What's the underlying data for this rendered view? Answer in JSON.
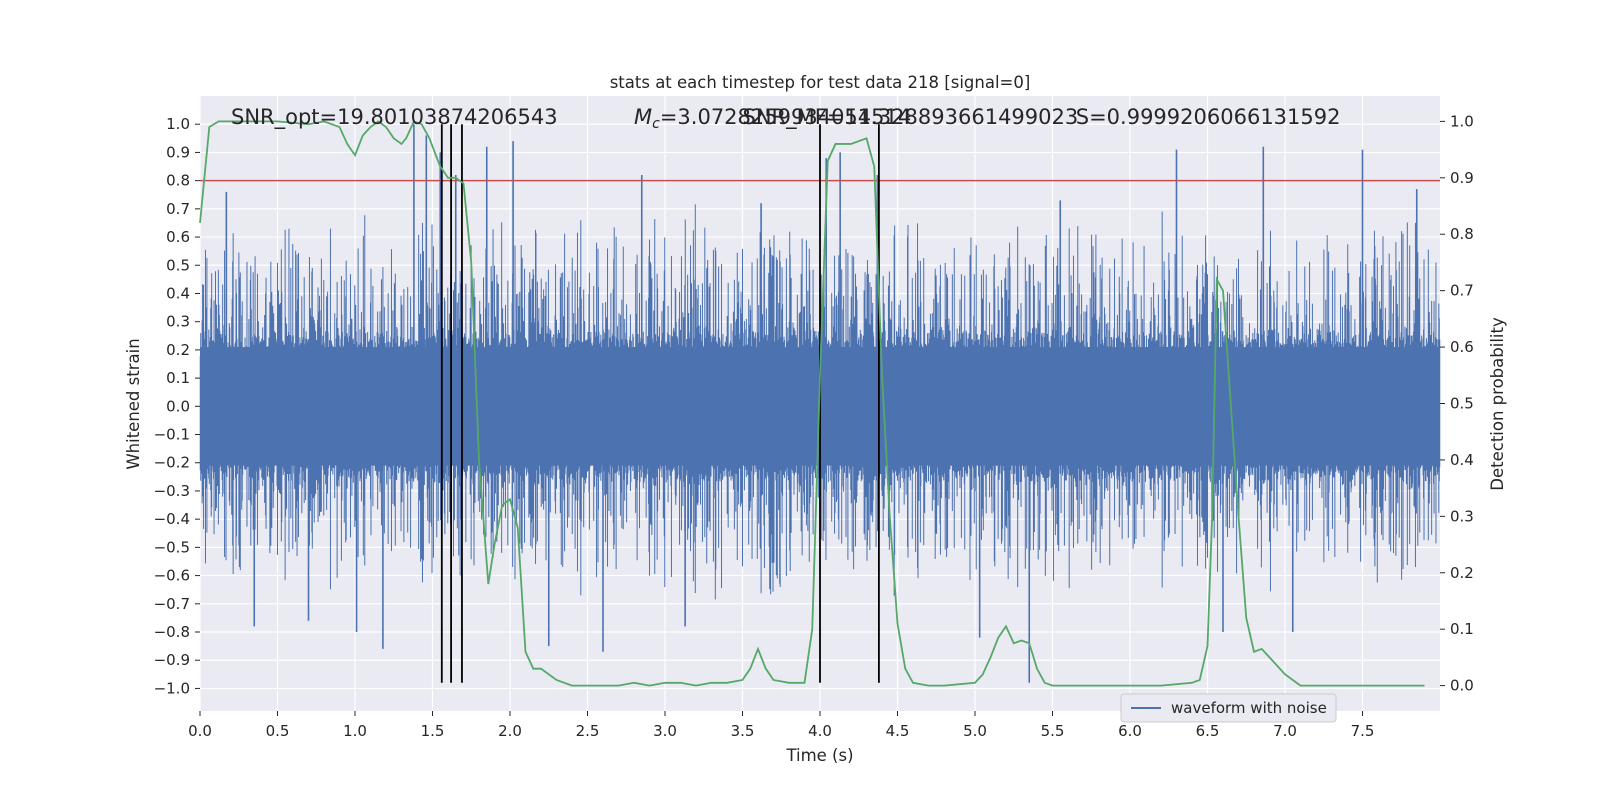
{
  "chart_data": {
    "type": "line",
    "title": "stats at each timestep for test data 218 [signal=0]",
    "xlabel": "Time (s)",
    "ylabel_left": "Whitened strain",
    "ylabel_right": "Detection probability",
    "xlim": [
      0.0,
      8.0
    ],
    "ylim_left": [
      -1.08,
      1.1
    ],
    "ylim_right": [
      -0.045,
      1.045
    ],
    "x_ticks": [
      "0.0",
      "0.5",
      "1.0",
      "1.5",
      "2.0",
      "2.5",
      "3.0",
      "3.5",
      "4.0",
      "4.5",
      "5.0",
      "5.5",
      "6.0",
      "6.5",
      "7.0",
      "7.5"
    ],
    "x_tick_values": [
      0.0,
      0.5,
      1.0,
      1.5,
      2.0,
      2.5,
      3.0,
      3.5,
      4.0,
      4.5,
      5.0,
      5.5,
      6.0,
      6.5,
      7.0,
      7.5
    ],
    "y_ticks_left": [
      "1.0",
      "0.9",
      "0.8",
      "0.7",
      "0.6",
      "0.5",
      "0.4",
      "0.3",
      "0.2",
      "0.1",
      "0.0",
      "−0.1",
      "−0.2",
      "−0.3",
      "−0.4",
      "−0.5",
      "−0.6",
      "−0.7",
      "−0.8",
      "−0.9",
      "−1.0"
    ],
    "y_tick_values_left": [
      1.0,
      0.9,
      0.8,
      0.7,
      0.6,
      0.5,
      0.4,
      0.3,
      0.2,
      0.1,
      0.0,
      -0.1,
      -0.2,
      -0.3,
      -0.4,
      -0.5,
      -0.6,
      -0.7,
      -0.8,
      -0.9,
      -1.0
    ],
    "y_ticks_right": [
      "1.0",
      "0.9",
      "0.8",
      "0.7",
      "0.6",
      "0.5",
      "0.4",
      "0.3",
      "0.2",
      "0.1",
      "0.0"
    ],
    "y_tick_values_right": [
      1.0,
      0.9,
      0.8,
      0.7,
      0.6,
      0.5,
      0.4,
      0.3,
      0.2,
      0.1,
      0.0
    ],
    "grid": true,
    "legend": {
      "entries": [
        "waveform with noise"
      ],
      "placement": "lower-right"
    },
    "annotations": [
      {
        "text": "SNR_opt=19.80103874206543",
        "x": 0.2
      },
      {
        "text": "=3.0728259934051514",
        "x": 2.8,
        "math_prefix": "M",
        "math_sub": "c"
      },
      {
        "text": "SNR_MF=14.328893661499023",
        "x": 3.5
      },
      {
        "text": "S=0.9999206066131592",
        "x": 5.65
      }
    ],
    "threshold": {
      "value": 0.8,
      "color": "#c44e52"
    },
    "vertical_lines": [
      1.56,
      1.62,
      1.69,
      4.0,
      4.38
    ],
    "vertical_line_range": [
      -0.98,
      1.0
    ],
    "waveform": {
      "name": "waveform with noise",
      "color": "#4c72b0",
      "core_envelope": 0.28,
      "max_envelope": 0.97,
      "spike_x": [
        0.17,
        0.35,
        0.7,
        1.01,
        1.18,
        1.38,
        1.46,
        1.55,
        1.65,
        1.85,
        2.02,
        2.25,
        2.6,
        2.85,
        3.13,
        3.62,
        4.04,
        4.13,
        4.37,
        5.03,
        5.35,
        5.55,
        6.3,
        6.6,
        6.86,
        7.05,
        7.5,
        7.85
      ],
      "spike_y": [
        0.76,
        -0.78,
        -0.76,
        -0.8,
        -0.86,
        1.0,
        0.96,
        0.9,
        0.82,
        0.92,
        0.94,
        -0.85,
        -0.87,
        0.82,
        -0.78,
        0.72,
        0.88,
        0.9,
        0.82,
        -0.82,
        -0.98,
        0.73,
        0.91,
        -0.8,
        0.92,
        -0.8,
        0.91,
        0.77
      ]
    },
    "detection_probability": {
      "name": "",
      "color": "#55a868",
      "x": [
        0.0,
        0.06,
        0.12,
        0.3,
        0.5,
        0.7,
        0.8,
        0.9,
        0.95,
        1.0,
        1.05,
        1.1,
        1.15,
        1.2,
        1.25,
        1.3,
        1.33,
        1.38,
        1.43,
        1.48,
        1.55,
        1.6,
        1.65,
        1.7,
        1.75,
        1.8,
        1.86,
        1.9,
        1.95,
        2.0,
        2.05,
        2.1,
        2.15,
        2.2,
        2.3,
        2.4,
        2.5,
        2.6,
        2.7,
        2.8,
        2.9,
        3.0,
        3.1,
        3.2,
        3.3,
        3.4,
        3.5,
        3.55,
        3.6,
        3.65,
        3.7,
        3.8,
        3.9,
        3.95,
        4.0,
        4.05,
        4.1,
        4.2,
        4.3,
        4.35,
        4.4,
        4.45,
        4.5,
        4.55,
        4.6,
        4.7,
        4.8,
        5.0,
        5.05,
        5.1,
        5.15,
        5.2,
        5.25,
        5.3,
        5.35,
        5.4,
        5.45,
        5.5,
        5.6,
        5.8,
        6.0,
        6.2,
        6.4,
        6.45,
        6.5,
        6.53,
        6.56,
        6.6,
        6.65,
        6.7,
        6.75,
        6.8,
        6.85,
        6.9,
        7.0,
        7.1,
        7.3,
        7.5,
        7.9
      ],
      "values": [
        0.82,
        0.99,
        1.0,
        1.0,
        1.0,
        0.995,
        1.0,
        0.99,
        0.96,
        0.94,
        0.975,
        0.99,
        1.0,
        0.99,
        0.97,
        0.96,
        0.97,
        1.0,
        0.995,
        0.97,
        0.92,
        0.9,
        0.9,
        0.89,
        0.75,
        0.4,
        0.18,
        0.25,
        0.32,
        0.33,
        0.28,
        0.06,
        0.03,
        0.03,
        0.01,
        0.0,
        0.0,
        0.0,
        0.0,
        0.005,
        0.0,
        0.005,
        0.005,
        0.0,
        0.005,
        0.005,
        0.01,
        0.03,
        0.065,
        0.03,
        0.01,
        0.005,
        0.005,
        0.1,
        0.55,
        0.93,
        0.96,
        0.96,
        0.97,
        0.92,
        0.55,
        0.3,
        0.11,
        0.03,
        0.005,
        0.0,
        0.0,
        0.005,
        0.02,
        0.05,
        0.085,
        0.105,
        0.075,
        0.08,
        0.075,
        0.03,
        0.005,
        0.0,
        0.0,
        0.0,
        0.0,
        0.0,
        0.005,
        0.01,
        0.07,
        0.3,
        0.72,
        0.7,
        0.5,
        0.3,
        0.12,
        0.06,
        0.065,
        0.05,
        0.02,
        0.0,
        0.0,
        0.0,
        0.0
      ]
    }
  }
}
